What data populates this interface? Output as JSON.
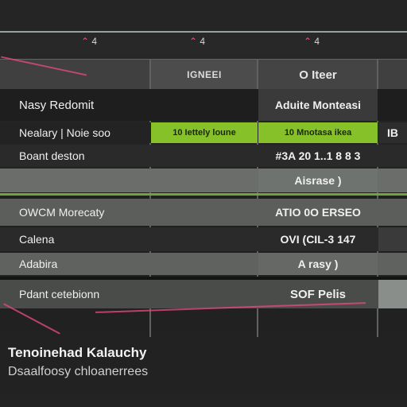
{
  "top_icons": [
    {
      "label": "4",
      "icon": "arrow-icon"
    },
    {
      "label": "4",
      "icon": "arrow-icon"
    },
    {
      "label": "4",
      "icon": "arrow-icon"
    }
  ],
  "header": {
    "col1": "IGNEEI",
    "col2": "O Iteer"
  },
  "rows": [
    {
      "c0": "Nasy Redomit",
      "c1": "",
      "c2": "Aduite Monteasi",
      "c3": ""
    },
    {
      "c0": "Nealary | Noie soo",
      "c1": "10  Iettely loune",
      "c2": "10  Mnotasa ikea",
      "c3": "IB"
    },
    {
      "c0": "Boant deston",
      "c1": "",
      "c2": "#3A 20 1..1 8 8 3",
      "c3": ""
    },
    {
      "c0": "",
      "c1": "",
      "c2": "Aisrase )",
      "c3": ""
    },
    {
      "c0": "OWCM Morecaty",
      "c1": "",
      "c2": "ATIO 0O ERSEO",
      "c3": ""
    },
    {
      "c0": "Calena",
      "c1": "",
      "c2": "OVI (CIL-3 147",
      "c3": ""
    },
    {
      "c0": "Adabira",
      "c1": "",
      "c2": "A rasy )",
      "c3": ""
    },
    {
      "c0": "Pdant cetebionn",
      "c1": "",
      "c2": "SOF Pelis",
      "c3": ""
    }
  ],
  "footer": {
    "title": "Tenoinehad Kalauchy",
    "subtitle": "Dsaalfoosy chloanerrees"
  },
  "colors": {
    "accent_green": "#86c12a",
    "accent_pink": "#e34a7a",
    "background": "#1f1f1f"
  }
}
